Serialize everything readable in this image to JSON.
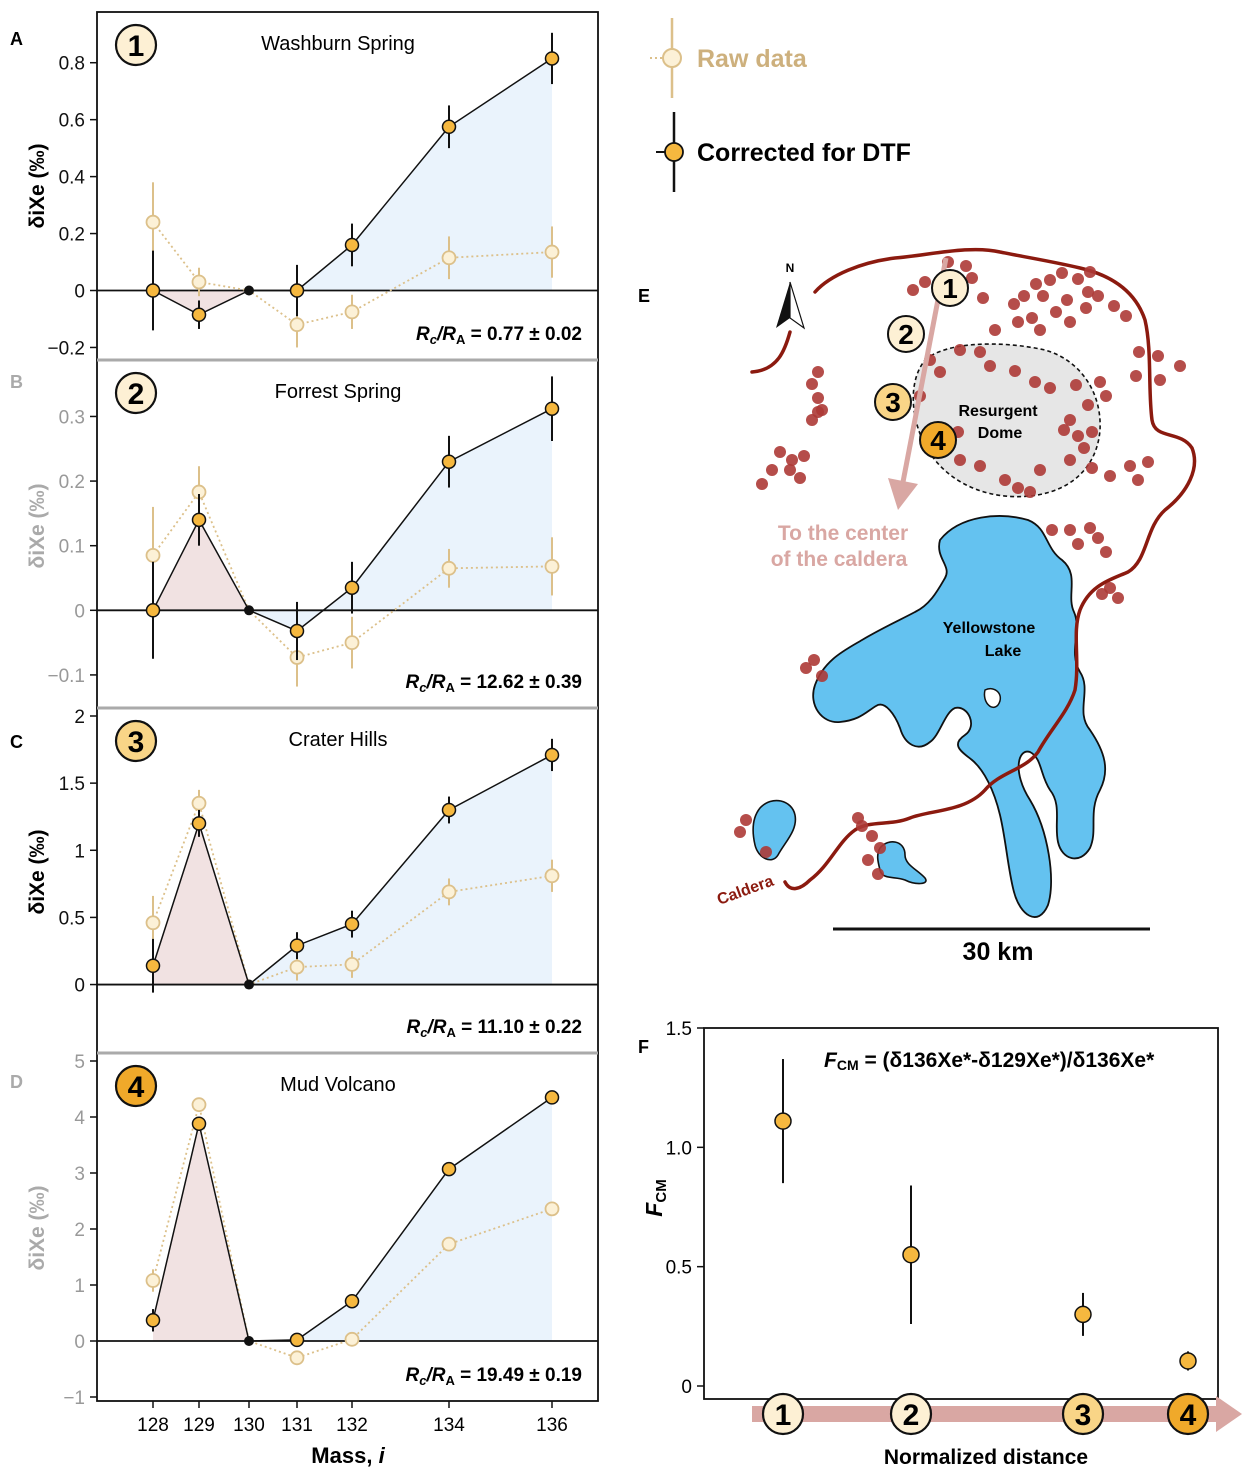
{
  "figure": {
    "panel_letters": [
      "A",
      "B",
      "C",
      "D",
      "E",
      "F"
    ],
    "legend": {
      "raw": "Raw data",
      "corrected": "Corrected for DTF"
    },
    "xlabel_prefix": "Mass, ",
    "xlabel_var": "i",
    "colors": {
      "raw": "#dcc08a",
      "raw_fill": "#fcf1d7",
      "corrected_line": "#111111",
      "corrected_fill": "#f6b83f",
      "pos_area": "#eaf3fc",
      "neg_area": "#f1e2e2",
      "caldera": "#8b1a0f",
      "dots": "#ad3a36",
      "lake": "#64c2f0",
      "dome": "#e6e6e6",
      "arrow": "#d9a7a3",
      "badge_light": "#fdf0d4",
      "badge_mid": "#f9d587",
      "badge_dark": "#f0a92a"
    }
  },
  "chart_data": [
    {
      "panel": "A",
      "type": "line",
      "badge": "1",
      "title": "Washburn Spring",
      "ylabel": "δiXe (‰)",
      "ylim": [
        -0.23,
        0.95
      ],
      "yticks": [
        -0.2,
        0,
        0.2,
        0.4,
        0.6,
        0.8
      ],
      "ytick_labels": [
        "−0.2",
        "0",
        "0.2",
        "0.4",
        "0.6",
        "0.8"
      ],
      "x": [
        128,
        129,
        130,
        131,
        132,
        134,
        136
      ],
      "series": [
        {
          "name": "Raw data",
          "values": [
            0.24,
            0.03,
            0,
            -0.12,
            -0.075,
            0.115,
            0.135
          ],
          "errors": [
            0.14,
            0.05,
            0,
            0.08,
            0.06,
            0.075,
            0.09
          ]
        },
        {
          "name": "Corrected for DTF",
          "values": [
            0.0,
            -0.085,
            0,
            0.0,
            0.16,
            0.575,
            0.815
          ],
          "errors": [
            0.14,
            0.05,
            0,
            0.09,
            0.075,
            0.075,
            0.09
          ]
        }
      ],
      "ratio_text": "= 0.77 ± 0.02"
    },
    {
      "panel": "B",
      "type": "line",
      "badge": "2",
      "title": "Forrest Spring",
      "ylabel": "δiXe (‰)",
      "ylim": [
        -0.145,
        0.375
      ],
      "yticks": [
        -0.1,
        0,
        0.1,
        0.2,
        0.3
      ],
      "ytick_labels": [
        "−0.1",
        "0",
        "0.1",
        "0.2",
        "0.3"
      ],
      "x": [
        128,
        129,
        130,
        131,
        132,
        134,
        136
      ],
      "series": [
        {
          "name": "Raw data",
          "values": [
            0.085,
            0.183,
            0,
            -0.073,
            -0.05,
            0.065,
            0.068
          ],
          "errors": [
            0.075,
            0.04,
            0,
            0.045,
            0.04,
            0.03,
            0.045
          ]
        },
        {
          "name": "Corrected for DTF",
          "values": [
            0.0,
            0.14,
            0,
            -0.032,
            0.035,
            0.23,
            0.312
          ],
          "errors": [
            0.075,
            0.04,
            0,
            0.045,
            0.04,
            0.04,
            0.05
          ]
        }
      ],
      "ratio_text": "= 12.62 ±  0.39"
    },
    {
      "panel": "C",
      "type": "line",
      "badge": "3",
      "title": "Crater Hills",
      "ylabel": "δiXe (‰)",
      "ylim": [
        -0.48,
        2.0
      ],
      "yticks": [
        0,
        0.5,
        1,
        1.5,
        2
      ],
      "ytick_labels": [
        "0",
        "0.5",
        "1",
        "1.5",
        "2"
      ],
      "x": [
        128,
        129,
        130,
        131,
        132,
        134,
        136
      ],
      "series": [
        {
          "name": "Raw data",
          "values": [
            0.46,
            1.35,
            0,
            0.13,
            0.15,
            0.69,
            0.81
          ],
          "errors": [
            0.2,
            0.1,
            0,
            0.1,
            0.1,
            0.1,
            0.12
          ]
        },
        {
          "name": "Corrected for DTF",
          "values": [
            0.14,
            1.2,
            0,
            0.29,
            0.45,
            1.3,
            1.71
          ],
          "errors": [
            0.2,
            0.1,
            0,
            0.1,
            0.1,
            0.1,
            0.12
          ]
        }
      ],
      "ratio_text": "= 11.10 ±  0.22"
    },
    {
      "panel": "D",
      "type": "line",
      "badge": "4",
      "title": "Mud Volcano",
      "ylabel": "δiXe (‰)",
      "ylim": [
        -1.0,
        5.0
      ],
      "yticks": [
        -1,
        0,
        1,
        2,
        3,
        4,
        5
      ],
      "ytick_labels": [
        "−1",
        "0",
        "1",
        "2",
        "3",
        "4",
        "5"
      ],
      "xticks": [
        128,
        129,
        130,
        131,
        132,
        134,
        136
      ],
      "x": [
        128,
        129,
        130,
        131,
        132,
        134,
        136
      ],
      "series": [
        {
          "name": "Raw data",
          "values": [
            1.08,
            4.22,
            0,
            -0.3,
            0.03,
            1.73,
            2.36
          ],
          "errors": [
            0.2,
            0.1,
            0,
            0.1,
            0.05,
            0.08,
            0.1
          ]
        },
        {
          "name": "Corrected for DTF",
          "values": [
            0.37,
            3.88,
            0,
            0.02,
            0.71,
            3.07,
            4.35
          ],
          "errors": [
            0.2,
            0.1,
            0,
            0.1,
            0.05,
            0.08,
            0.12
          ]
        }
      ],
      "ratio_text": "= 19.49 ± 0.19"
    },
    {
      "panel": "F",
      "type": "scatter",
      "ylabel": "FCM",
      "xlabel": "Normalized distance",
      "formula": "(δ136Xe*-δ129Xe*)/δ136Xe*",
      "ylim": [
        0,
        1.5
      ],
      "yticks": [
        0,
        0.5,
        1.0,
        1.5
      ],
      "ytick_labels": [
        "0",
        "0.5",
        "1.0",
        "1.5"
      ],
      "categories": [
        "1",
        "2",
        "3",
        "4"
      ],
      "values": [
        1.11,
        0.55,
        0.3,
        0.105
      ],
      "errors_low": [
        0.26,
        0.29,
        0.09,
        0.04
      ],
      "errors_high": [
        0.26,
        0.29,
        0.09,
        0.04
      ]
    }
  ],
  "map": {
    "labels": {
      "north": "N",
      "dome": [
        "Resurgent",
        "Dome"
      ],
      "lake": [
        "Yellowstone",
        "Lake"
      ],
      "arrow": [
        "To the center",
        "of the caldera"
      ],
      "caldera": "Caldera",
      "scale": "30 km"
    },
    "badges": [
      "1",
      "2",
      "3",
      "4"
    ]
  }
}
